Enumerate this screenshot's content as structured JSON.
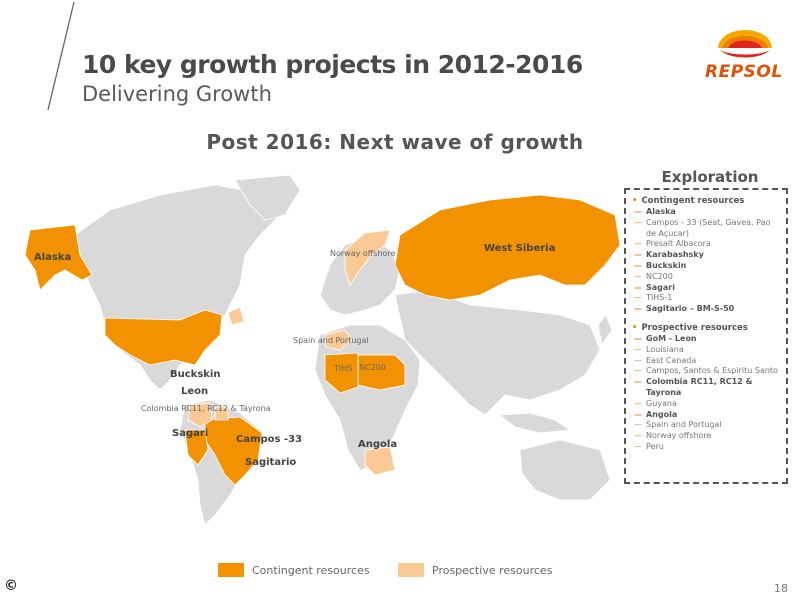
{
  "header": {
    "title": "10 key growth projects in 2012-2016",
    "subtitle": "Delivering Growth",
    "logo_text": "REPSOL"
  },
  "map": {
    "heading": "Post 2016: Next wave of growth",
    "labels": {
      "alaska": "Alaska",
      "west_siberia": "West Siberia",
      "norway": "Norway offshore",
      "spain_portugal": "Spain and Portugal",
      "tihs": "TIHS",
      "nc200": "NC200",
      "buckskin": "Buckskin",
      "leon": "Leon",
      "colombia": "Colombia RC11, RC12 & Tayrona",
      "sagari": "Sagari",
      "campos": "Campos -33",
      "sagitario": "Sagitario",
      "angola": "Angola"
    },
    "colors": {
      "contingent": "#f39200",
      "prospective": "#fbc995",
      "land": "#d9d9d9",
      "border": "#ffffff"
    }
  },
  "exploration": {
    "title": "Exploration",
    "contingent_heading": "Contingent resources",
    "contingent_items": [
      {
        "text": "Alaska",
        "bold": true
      },
      {
        "text": "Campos - 33 (Seat, Gavea, Pao de Açucar)",
        "bold": false
      },
      {
        "text": "Presalt Albacora",
        "bold": false
      },
      {
        "text": "Karabashsky",
        "bold": true
      },
      {
        "text": "Buckskin",
        "bold": true
      },
      {
        "text": "NC200",
        "bold": false
      },
      {
        "text": "Sagari",
        "bold": true
      },
      {
        "text": "TIHS-1",
        "bold": false
      },
      {
        "text": "Sagitario – BM-S-50",
        "bold": true
      }
    ],
    "prospective_heading": "Prospective resources",
    "prospective_items": [
      {
        "text": "GoM - Leon",
        "bold": true
      },
      {
        "text": "Louisiana",
        "bold": false
      },
      {
        "text": "East Canada",
        "bold": false
      },
      {
        "text": "Campos, Santos & Espiritu Santo",
        "bold": false
      },
      {
        "text": "Colombia RC11, RC12 & Tayrona",
        "bold": true
      },
      {
        "text": "Guyana",
        "bold": false
      },
      {
        "text": "Angola",
        "bold": true
      },
      {
        "text": "Spain and Portugal",
        "bold": false
      },
      {
        "text": "Norway offshore",
        "bold": false
      },
      {
        "text": "Peru",
        "bold": false
      }
    ]
  },
  "legend": {
    "contingent": "Contingent resources",
    "prospective": "Prospective resources"
  },
  "footer": {
    "copyright": "©",
    "page_number": "18"
  }
}
